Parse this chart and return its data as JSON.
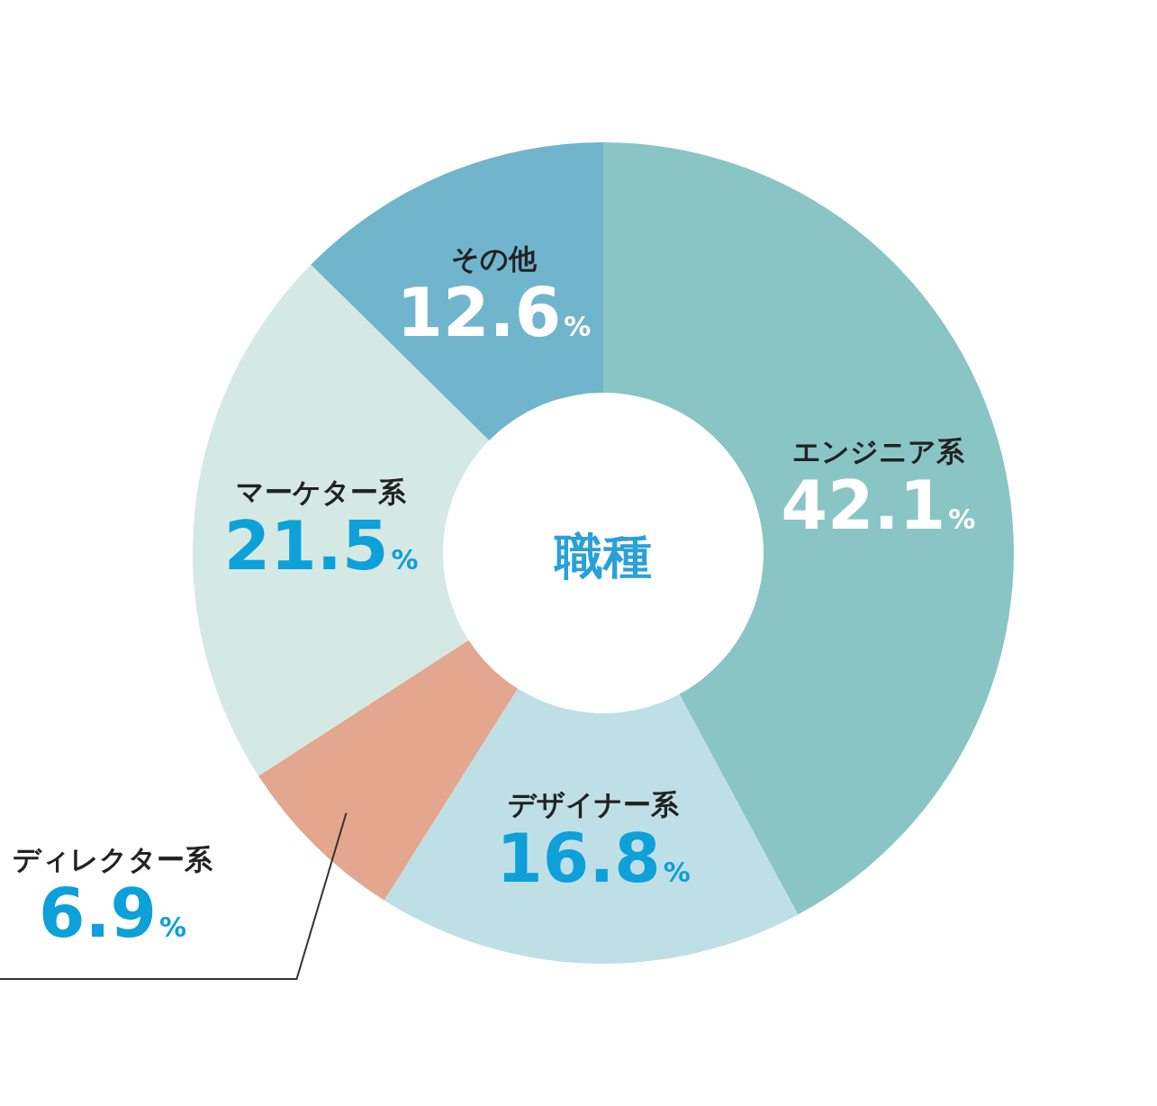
{
  "chart_data": {
    "type": "donut",
    "title": "職種",
    "categories": [
      "エンジニア系",
      "デザイナー系",
      "ディレクター系",
      "マーケター系",
      "その他"
    ],
    "values": [
      42.1,
      16.8,
      6.9,
      21.5,
      12.6
    ],
    "colors": [
      "#8ac5c6",
      "#bfdfe7",
      "#e3a68e",
      "#d4e9e3",
      "#71b5cc"
    ],
    "value_labels": [
      "42.1%",
      "16.8%",
      "6.9%",
      "21.5%",
      "12.6%"
    ],
    "legend": false
  }
}
